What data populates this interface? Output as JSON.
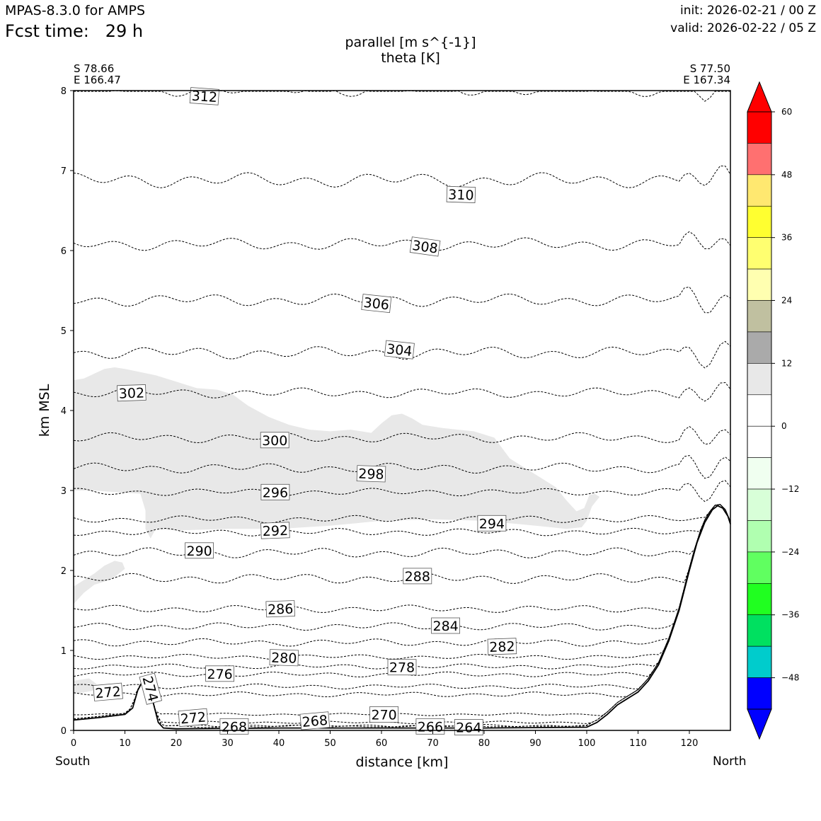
{
  "header": {
    "model": "MPAS-8.3.0 for AMPS",
    "fcst_label": "Fcst time:",
    "fcst_value": "29 h",
    "init": "init: 2026-02-21 / 00 Z",
    "valid": "valid: 2026-02-22 / 05 Z"
  },
  "chart_data": {
    "type": "contour cross-section",
    "title_lines": [
      "parallel [m s^{-1}]",
      "theta [K]"
    ],
    "xlabel": "distance [km]",
    "ylabel": "km MSL",
    "xlim": [
      0,
      128
    ],
    "ylim": [
      0,
      8
    ],
    "xticks": [
      0,
      10,
      20,
      30,
      40,
      50,
      60,
      70,
      80,
      90,
      100,
      110,
      120
    ],
    "yticks": [
      0,
      1,
      2,
      3,
      4,
      5,
      6,
      7,
      8
    ],
    "left_end": {
      "lat": "S 78.66",
      "lon": "E 166.47",
      "direction": "South"
    },
    "right_end": {
      "lat": "S 77.50",
      "lon": "E 167.34",
      "direction": "North"
    },
    "terrain_km": [
      [
        0,
        0.13
      ],
      [
        5,
        0.16
      ],
      [
        10,
        0.2
      ],
      [
        11.5,
        0.28
      ],
      [
        12.5,
        0.5
      ],
      [
        13.5,
        0.62
      ],
      [
        14.5,
        0.58
      ],
      [
        15.5,
        0.35
      ],
      [
        16.5,
        0.1
      ],
      [
        17.5,
        0.03
      ],
      [
        20,
        0.02
      ],
      [
        40,
        0.03
      ],
      [
        60,
        0.03
      ],
      [
        80,
        0.03
      ],
      [
        100,
        0.04
      ],
      [
        102,
        0.1
      ],
      [
        104,
        0.2
      ],
      [
        106,
        0.32
      ],
      [
        108,
        0.4
      ],
      [
        110,
        0.48
      ],
      [
        112,
        0.62
      ],
      [
        114,
        0.82
      ],
      [
        116,
        1.12
      ],
      [
        118,
        1.5
      ],
      [
        120,
        2.0
      ],
      [
        121.5,
        2.35
      ],
      [
        123,
        2.6
      ],
      [
        124.5,
        2.76
      ],
      [
        125.5,
        2.81
      ],
      [
        126.5,
        2.78
      ],
      [
        127.5,
        2.68
      ],
      [
        128,
        2.58
      ]
    ],
    "theta_contours": [
      {
        "level": 312,
        "y0": 8.02,
        "amp": 0.06,
        "label_x": 25.5
      },
      {
        "level": 310,
        "y0": 6.88,
        "amp": 0.06,
        "label_x": 75.5
      },
      {
        "level": 308,
        "y0": 6.08,
        "amp": 0.05,
        "label_x": 68.5
      },
      {
        "level": 306,
        "y0": 5.38,
        "amp": 0.05,
        "label_x": 59
      },
      {
        "level": 304,
        "y0": 4.72,
        "amp": 0.05,
        "label_x": 63.5
      },
      {
        "level": 302,
        "y0": 4.22,
        "amp": 0.04,
        "label_x": 11.3
      },
      {
        "level": 300,
        "y0": 3.66,
        "amp": 0.04,
        "label_x": 39.2
      },
      {
        "level": 298,
        "y0": 3.28,
        "amp": 0.04,
        "label_x": 58
      },
      {
        "level": 296,
        "y0": 2.98,
        "amp": 0.03,
        "label_x": 39.3
      },
      {
        "level": 294,
        "y0": 2.64,
        "amp": 0.03,
        "label_x": 81.5
      },
      {
        "level": 292,
        "y0": 2.48,
        "amp": 0.03,
        "label_x": 39.3
      },
      {
        "level": 290,
        "y0": 2.22,
        "amp": 0.04,
        "label_x": 24.5
      },
      {
        "level": 288,
        "y0": 1.9,
        "amp": 0.04,
        "label_x": 67
      },
      {
        "level": 286,
        "y0": 1.52,
        "amp": 0.03,
        "label_x": 40.3
      },
      {
        "level": 284,
        "y0": 1.3,
        "amp": 0.03,
        "label_x": 72.5
      },
      {
        "level": 282,
        "y0": 1.1,
        "amp": 0.03,
        "label_x": 83.5
      },
      {
        "level": 280,
        "y0": 0.92,
        "amp": 0.02,
        "label_x": 41
      },
      {
        "level": 278,
        "y0": 0.8,
        "amp": 0.02,
        "label_x": 64
      },
      {
        "level": 276,
        "y0": 0.7,
        "amp": 0.02,
        "label_x": 28.5
      },
      {
        "level": 274,
        "y0": 0.55,
        "amp": 0.02,
        "label_x": 15
      },
      {
        "level": 272,
        "y0": 0.45,
        "amp": 0.02,
        "label_x": 6.7
      },
      {
        "level": 270,
        "y0": 0.2,
        "amp": 0.01,
        "label_x": 60.5
      },
      {
        "level": 268,
        "y0": 0.1,
        "amp": 0.01,
        "label_x": 47
      },
      {
        "level": 266,
        "y0": 0.06,
        "amp": 0.01,
        "label_x": 69.5
      },
      {
        "level": 264,
        "y0": 0.05,
        "amp": 0.01,
        "label_x": 77
      }
    ],
    "theta_labels": [
      {
        "text": "312",
        "x": 25.5,
        "y": 7.93,
        "rot": 4
      },
      {
        "text": "310",
        "x": 75.5,
        "y": 6.7,
        "rot": 2
      },
      {
        "text": "308",
        "x": 68.5,
        "y": 6.05,
        "rot": 8
      },
      {
        "text": "306",
        "x": 59.0,
        "y": 5.34,
        "rot": 6
      },
      {
        "text": "304",
        "x": 63.5,
        "y": 4.76,
        "rot": 6
      },
      {
        "text": "302",
        "x": 11.3,
        "y": 4.22,
        "rot": -2
      },
      {
        "text": "300",
        "x": 39.2,
        "y": 3.63,
        "rot": 0
      },
      {
        "text": "298",
        "x": 58.0,
        "y": 3.21,
        "rot": 2
      },
      {
        "text": "296",
        "x": 39.3,
        "y": 2.98,
        "rot": 0
      },
      {
        "text": "294",
        "x": 81.5,
        "y": 2.59,
        "rot": 0
      },
      {
        "text": "292",
        "x": 39.3,
        "y": 2.5,
        "rot": -2
      },
      {
        "text": "290",
        "x": 24.5,
        "y": 2.25,
        "rot": 0
      },
      {
        "text": "288",
        "x": 67.0,
        "y": 1.93,
        "rot": 0
      },
      {
        "text": "286",
        "x": 40.3,
        "y": 1.52,
        "rot": -2
      },
      {
        "text": "284",
        "x": 72.5,
        "y": 1.31,
        "rot": 0
      },
      {
        "text": "282",
        "x": 83.5,
        "y": 1.05,
        "rot": -2
      },
      {
        "text": "280",
        "x": 41.0,
        "y": 0.91,
        "rot": 2
      },
      {
        "text": "278",
        "x": 64.0,
        "y": 0.79,
        "rot": 0
      },
      {
        "text": "276",
        "x": 28.5,
        "y": 0.71,
        "rot": 0
      },
      {
        "text": "274",
        "x": 15.0,
        "y": 0.52,
        "rot": 75
      },
      {
        "text": "272",
        "x": 6.7,
        "y": 0.48,
        "rot": -5
      },
      {
        "text": "272",
        "x": 23.3,
        "y": 0.16,
        "rot": -5
      },
      {
        "text": "270",
        "x": 60.5,
        "y": 0.2,
        "rot": 0
      },
      {
        "text": "268",
        "x": 31.3,
        "y": 0.05,
        "rot": 0
      },
      {
        "text": "268",
        "x": 47.0,
        "y": 0.12,
        "rot": -5
      },
      {
        "text": "266",
        "x": 69.5,
        "y": 0.05,
        "rot": 0
      },
      {
        "text": "264",
        "x": 77.0,
        "y": 0.04,
        "rot": 0
      }
    ],
    "wind_fill": {
      "color": "#e8e8e8",
      "value_range_m_s": [
        6,
        12
      ],
      "main_region": [
        [
          0,
          4.38
        ],
        [
          2,
          4.4
        ],
        [
          4,
          4.46
        ],
        [
          6,
          4.52
        ],
        [
          8,
          4.54
        ],
        [
          10,
          4.52
        ],
        [
          13,
          4.48
        ],
        [
          16,
          4.44
        ],
        [
          20,
          4.36
        ],
        [
          24,
          4.28
        ],
        [
          28,
          4.26
        ],
        [
          31,
          4.2
        ],
        [
          34,
          4.06
        ],
        [
          38,
          3.92
        ],
        [
          42,
          3.82
        ],
        [
          46,
          3.76
        ],
        [
          50,
          3.74
        ],
        [
          54,
          3.76
        ],
        [
          58,
          3.72
        ],
        [
          60,
          3.84
        ],
        [
          62,
          3.94
        ],
        [
          64,
          3.96
        ],
        [
          66,
          3.9
        ],
        [
          68,
          3.82
        ],
        [
          72,
          3.78
        ],
        [
          78,
          3.74
        ],
        [
          82,
          3.66
        ],
        [
          85,
          3.4
        ],
        [
          88,
          3.28
        ],
        [
          91,
          3.16
        ],
        [
          94,
          3.04
        ],
        [
          96,
          2.88
        ],
        [
          98,
          2.74
        ],
        [
          99.5,
          2.78
        ],
        [
          100.5,
          2.94
        ],
        [
          101.5,
          2.96
        ],
        [
          102.5,
          2.92
        ],
        [
          101,
          2.8
        ],
        [
          100,
          2.62
        ],
        [
          99,
          2.54
        ],
        [
          96,
          2.52
        ],
        [
          90,
          2.56
        ],
        [
          80,
          2.62
        ],
        [
          70,
          2.64
        ],
        [
          60,
          2.62
        ],
        [
          50,
          2.56
        ],
        [
          40,
          2.52
        ],
        [
          30,
          2.52
        ],
        [
          20,
          2.5
        ],
        [
          16,
          2.52
        ],
        [
          15,
          2.4
        ],
        [
          14,
          2.52
        ],
        [
          14,
          2.75
        ],
        [
          13,
          2.96
        ],
        [
          8,
          2.98
        ],
        [
          4,
          3.0
        ],
        [
          0,
          3.0
        ]
      ],
      "small_region": [
        [
          0,
          1.8
        ],
        [
          2,
          1.88
        ],
        [
          4,
          1.96
        ],
        [
          6,
          2.06
        ],
        [
          8,
          2.12
        ],
        [
          9.5,
          2.1
        ],
        [
          10,
          2.02
        ],
        [
          8,
          1.92
        ],
        [
          6,
          1.86
        ],
        [
          4,
          1.82
        ],
        [
          2,
          1.72
        ],
        [
          0,
          1.58
        ]
      ],
      "low_region": [
        [
          0,
          0.62
        ],
        [
          3,
          0.65
        ],
        [
          4.5,
          0.58
        ],
        [
          4,
          0.5
        ],
        [
          0,
          0.45
        ]
      ]
    },
    "colorbar": {
      "label_values": [
        60,
        48,
        36,
        24,
        12,
        0,
        -12,
        -24,
        -36,
        -48
      ],
      "tick_labels": [
        "60",
        "48",
        "36",
        "24",
        "12",
        "0",
        "−12",
        "−24",
        "−36",
        "−48"
      ],
      "colors_top_to_bottom": [
        "#ff0000",
        "#ff0000",
        "#ff7070",
        "#ffe870",
        "#ffff30",
        "#ffff70",
        "#ffffb0",
        "#c0c0a0",
        "#aaaaaa",
        "#e8e8e8",
        "#ffffff",
        "#ffffff",
        "#f0fff0",
        "#d8ffd8",
        "#b0ffb0",
        "#60ff60",
        "#20ff20",
        "#00e060",
        "#00cccc",
        "#0000ff",
        "#0000ff"
      ]
    }
  }
}
